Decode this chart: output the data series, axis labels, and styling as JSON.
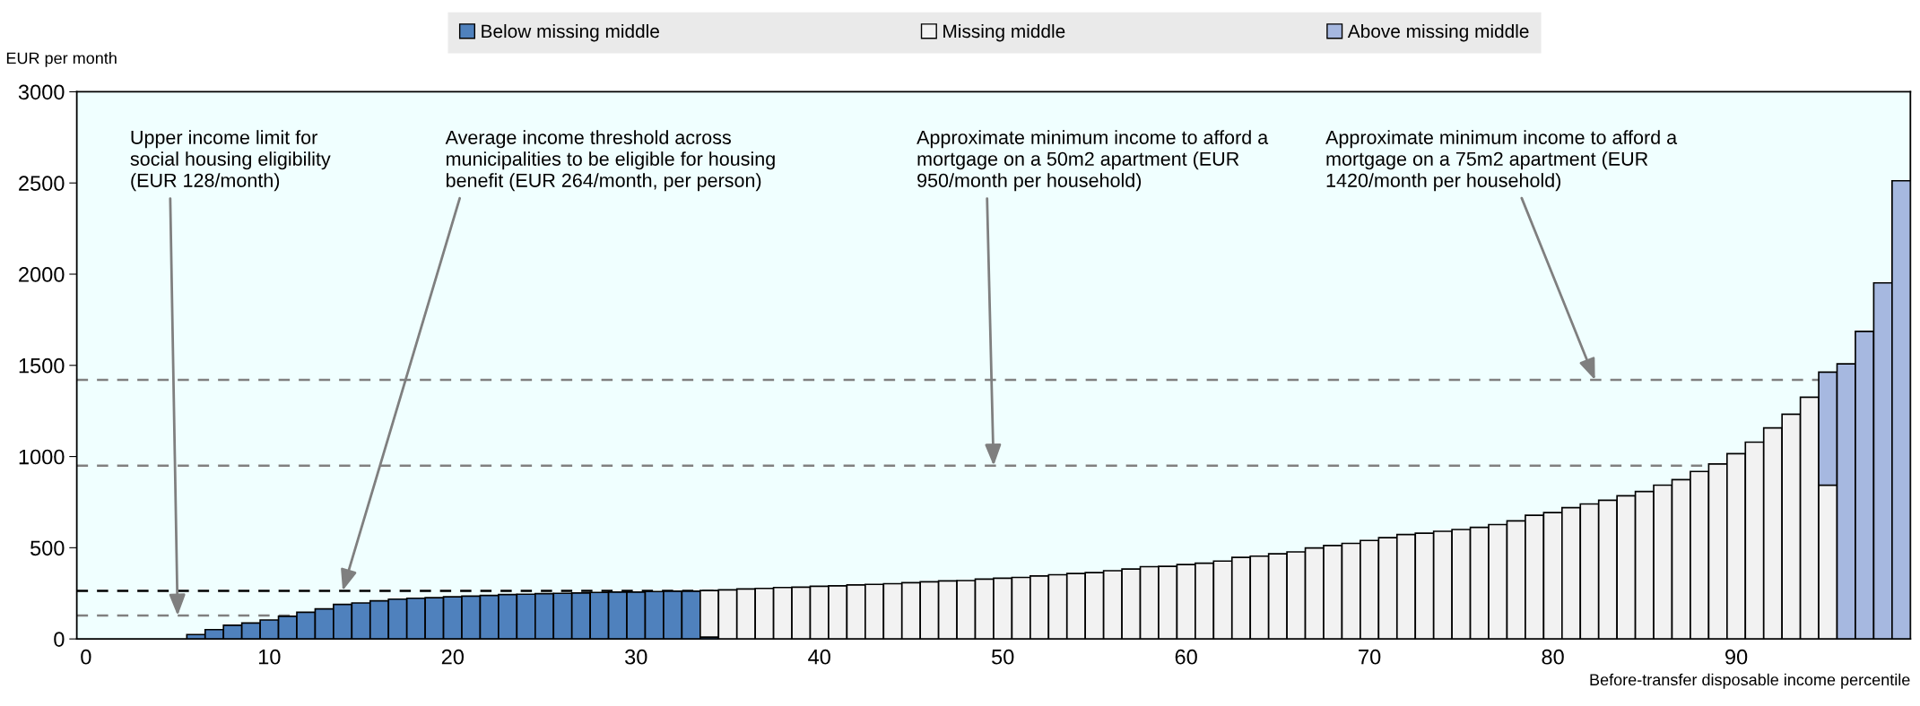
{
  "chart_data": {
    "type": "bar",
    "stacked": true,
    "ylabel": "EUR per month",
    "xlabel": "Before-transfer disposable income percentile",
    "x": [
      6,
      7,
      8,
      9,
      10,
      11,
      12,
      13,
      14,
      15,
      16,
      17,
      18,
      19,
      20,
      21,
      22,
      23,
      24,
      25,
      26,
      27,
      28,
      29,
      30,
      31,
      32,
      33,
      34,
      35,
      36,
      37,
      38,
      39,
      40,
      41,
      42,
      43,
      44,
      45,
      46,
      47,
      48,
      49,
      50,
      51,
      52,
      53,
      54,
      55,
      56,
      57,
      58,
      59,
      60,
      61,
      62,
      63,
      64,
      65,
      66,
      67,
      68,
      69,
      70,
      71,
      72,
      73,
      74,
      75,
      76,
      77,
      78,
      79,
      80,
      81,
      82,
      83,
      84,
      85,
      86,
      87,
      88,
      89,
      90,
      91,
      92,
      93,
      94,
      95,
      96,
      97,
      98,
      99
    ],
    "series": [
      {
        "name": "Below missing middle",
        "color": "#4f81bd",
        "values": [
          24,
          51,
          75,
          87,
          104,
          124,
          146,
          165,
          189,
          197,
          209,
          218,
          223,
          226,
          231,
          235,
          238,
          243,
          245,
          248,
          250,
          252,
          255,
          257,
          257,
          260,
          262,
          262,
          10,
          null,
          null,
          null,
          null,
          null,
          null,
          null,
          null,
          null,
          null,
          null,
          null,
          null,
          null,
          null,
          null,
          null,
          null,
          null,
          null,
          null,
          null,
          null,
          null,
          null,
          null,
          null,
          null,
          null,
          null,
          null,
          null,
          null,
          null,
          null,
          null,
          null,
          null,
          null,
          null,
          null,
          null,
          null,
          null,
          null,
          null,
          null,
          null,
          null,
          null,
          null,
          null,
          null,
          null,
          null,
          null,
          null,
          null,
          null,
          null,
          null,
          null,
          null,
          null,
          null
        ]
      },
      {
        "name": "Missing middle",
        "color": "#f2f2f2",
        "values": [
          null,
          null,
          null,
          null,
          null,
          null,
          null,
          null,
          null,
          null,
          null,
          null,
          null,
          null,
          null,
          null,
          null,
          null,
          null,
          null,
          null,
          null,
          null,
          null,
          null,
          null,
          null,
          null,
          255,
          269,
          274,
          277,
          282,
          284,
          289,
          291,
          296,
          299,
          303,
          308,
          313,
          318,
          320,
          328,
          333,
          337,
          345,
          352,
          359,
          364,
          374,
          383,
          396,
          398,
          408,
          415,
          427,
          447,
          454,
          467,
          477,
          499,
          512,
          524,
          540,
          555,
          572,
          580,
          590,
          600,
          612,
          627,
          647,
          678,
          693,
          720,
          740,
          760,
          785,
          808,
          843,
          873,
          918,
          959,
          1016,
          1079,
          1157,
          1232,
          1325,
          843,
          null,
          null,
          null,
          null
        ]
      },
      {
        "name": "Above missing middle",
        "color": "#a6b8e0",
        "values": [
          null,
          null,
          null,
          null,
          null,
          null,
          null,
          null,
          null,
          null,
          null,
          null,
          null,
          null,
          null,
          null,
          null,
          null,
          null,
          null,
          null,
          null,
          null,
          null,
          null,
          null,
          null,
          null,
          null,
          null,
          null,
          null,
          null,
          null,
          null,
          null,
          null,
          null,
          null,
          null,
          null,
          null,
          null,
          null,
          null,
          null,
          null,
          null,
          null,
          null,
          null,
          null,
          null,
          null,
          null,
          null,
          null,
          null,
          null,
          null,
          null,
          null,
          null,
          null,
          null,
          null,
          null,
          null,
          null,
          null,
          null,
          null,
          null,
          null,
          null,
          null,
          null,
          null,
          null,
          null,
          null,
          null,
          null,
          null,
          null,
          null,
          null,
          null,
          null,
          620,
          1508,
          1686,
          1952,
          2512
        ]
      }
    ],
    "xlim": [
      -0.5,
      99.5
    ],
    "xticks": [
      0,
      10,
      20,
      30,
      40,
      50,
      60,
      70,
      80,
      90
    ],
    "ylim": [
      0,
      3000
    ],
    "yticks": [
      0,
      500,
      1000,
      1500,
      2000,
      2500,
      3000
    ],
    "ref_lines": [
      {
        "axis": "y",
        "value": 128,
        "color": "#808080",
        "line_style": "dashed"
      },
      {
        "axis": "y",
        "value": 264,
        "color": "#000000",
        "line_style": "dashed"
      },
      {
        "axis": "y",
        "value": 950,
        "color": "#808080",
        "line_style": "dashed"
      },
      {
        "axis": "y",
        "value": 1420,
        "color": "#808080",
        "line_style": "dashed"
      }
    ],
    "annotations": [
      {
        "text": "Upper income limit for\nsocial housing eligibility\n(EUR 128/month)",
        "x": 5,
        "y": 128
      },
      {
        "text": "Average income threshold across\nmunicipalities to be eligible for housing\nbenefit (EUR 264/month, per person)",
        "x": 14,
        "y": 264
      },
      {
        "text": "Approximate minimum income to afford a\nmortgage on a 50m2 apartment (EUR\n950/month per household)",
        "x": 49.5,
        "y": 950
      },
      {
        "text": "Approximate minimum income to afford a\nmortgage on a 75m2 apartment (EUR\n1420/month per household)",
        "x": 82.3,
        "y": 1420
      }
    ],
    "legend": "top",
    "grid": false
  }
}
